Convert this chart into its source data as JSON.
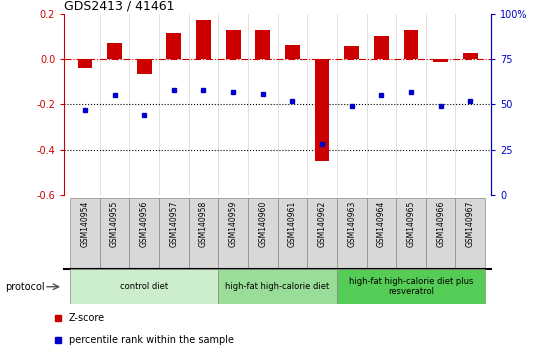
{
  "title": "GDS2413 / 41461",
  "samples": [
    "GSM140954",
    "GSM140955",
    "GSM140956",
    "GSM140957",
    "GSM140958",
    "GSM140959",
    "GSM140960",
    "GSM140961",
    "GSM140962",
    "GSM140963",
    "GSM140964",
    "GSM140965",
    "GSM140966",
    "GSM140967"
  ],
  "zscore": [
    -0.04,
    0.07,
    -0.065,
    0.115,
    0.175,
    0.13,
    0.13,
    0.065,
    -0.45,
    0.06,
    0.105,
    0.13,
    -0.01,
    0.03
  ],
  "percentile": [
    47,
    55,
    44,
    58,
    58,
    57,
    56,
    52,
    28,
    49,
    55,
    57,
    49,
    52
  ],
  "ylim_left": [
    -0.6,
    0.2
  ],
  "ylim_right": [
    0,
    100
  ],
  "left_ticks": [
    0.2,
    0.0,
    -0.2,
    -0.4,
    -0.6
  ],
  "right_ticks": [
    100,
    75,
    50,
    25,
    0
  ],
  "groups": [
    {
      "label": "control diet",
      "start": 0,
      "end": 5,
      "color": "#cceecc"
    },
    {
      "label": "high-fat high-calorie diet",
      "start": 5,
      "end": 9,
      "color": "#99dd99"
    },
    {
      "label": "high-fat high-calorie diet plus\nresveratrol",
      "start": 9,
      "end": 14,
      "color": "#55cc55"
    }
  ],
  "protocol_label": "protocol",
  "zscore_color": "#cc0000",
  "percentile_color": "#0000cc",
  "bar_width": 0.5,
  "dotted_line_color": "#000000",
  "dashed_line_color": "#cc0000",
  "sample_bg_color": "#d8d8d8",
  "sample_border_color": "#888888"
}
